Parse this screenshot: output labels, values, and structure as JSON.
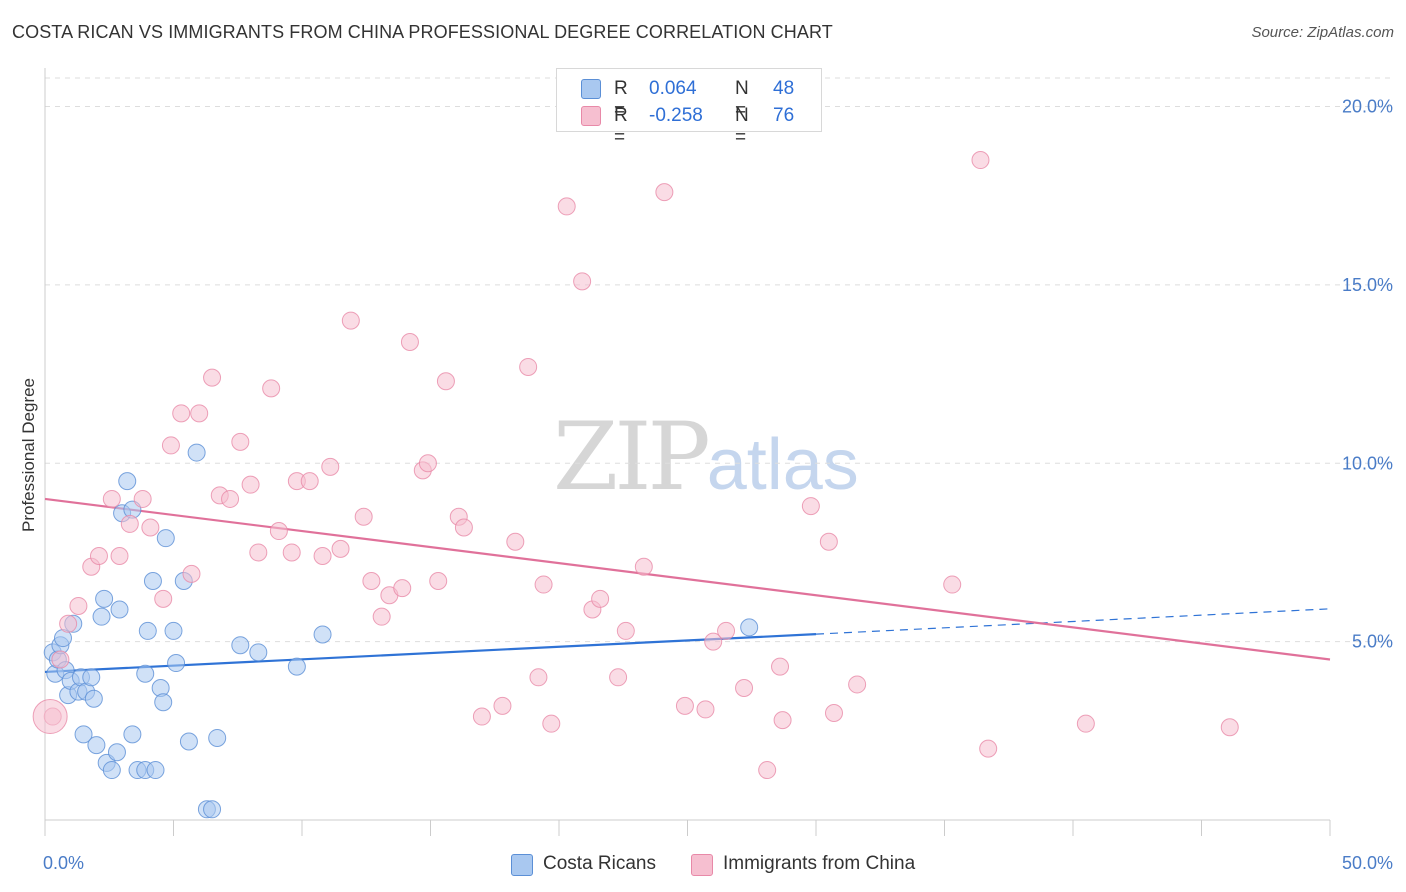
{
  "title": "COSTA RICAN VS IMMIGRANTS FROM CHINA PROFESSIONAL DEGREE CORRELATION CHART",
  "source": "Source: ZipAtlas.com",
  "watermark": {
    "zip": "ZIP",
    "atlas": "atlas"
  },
  "legend": {
    "rows": [
      {
        "r_label": "R =",
        "r_value": "0.064",
        "n_label": "N =",
        "n_value": "48",
        "color": "#a9c8f0",
        "stroke": "#5b8fd6"
      },
      {
        "r_label": "R =",
        "r_value": "-0.258",
        "n_label": "N =",
        "n_value": "76",
        "color": "#f6bfd0",
        "stroke": "#e889a8"
      }
    ]
  },
  "bottom_legend": [
    {
      "label": "Costa Ricans",
      "color": "#a9c8f0"
    },
    {
      "label": "Immigrants from China",
      "color": "#f6bfd0"
    }
  ],
  "chart_data": {
    "type": "scatter",
    "title": "COSTA RICAN VS IMMIGRANTS FROM CHINA PROFESSIONAL DEGREE CORRELATION CHART",
    "xlabel": "",
    "ylabel": "Professional Degree",
    "xlim": [
      0,
      50
    ],
    "ylim": [
      0,
      20.8
    ],
    "x_tick_labels": [
      "0.0%",
      "50.0%"
    ],
    "y_ticks": [
      5,
      10,
      15,
      20
    ],
    "y_tick_labels": [
      "5.0%",
      "10.0%",
      "15.0%",
      "20.0%"
    ],
    "grid": true,
    "legend_position": "top-center",
    "series": [
      {
        "name": "Costa Ricans",
        "color": "#5b8fd6",
        "fill": "#a9c8f0",
        "points": [
          [
            0.3,
            4.7
          ],
          [
            0.4,
            4.1
          ],
          [
            0.5,
            4.5
          ],
          [
            0.6,
            4.9
          ],
          [
            0.7,
            5.1
          ],
          [
            0.8,
            4.2
          ],
          [
            0.9,
            3.5
          ],
          [
            1.0,
            3.9
          ],
          [
            1.1,
            5.5
          ],
          [
            1.3,
            3.6
          ],
          [
            1.4,
            4.0
          ],
          [
            1.5,
            2.4
          ],
          [
            1.6,
            3.6
          ],
          [
            1.8,
            4.0
          ],
          [
            1.9,
            3.4
          ],
          [
            2.0,
            2.1
          ],
          [
            2.2,
            5.7
          ],
          [
            2.3,
            6.2
          ],
          [
            2.4,
            1.6
          ],
          [
            2.6,
            1.4
          ],
          [
            2.8,
            1.9
          ],
          [
            2.9,
            5.9
          ],
          [
            3.0,
            8.6
          ],
          [
            3.2,
            9.5
          ],
          [
            3.4,
            8.7
          ],
          [
            3.4,
            2.4
          ],
          [
            3.6,
            1.4
          ],
          [
            3.9,
            1.4
          ],
          [
            3.9,
            4.1
          ],
          [
            4.0,
            5.3
          ],
          [
            4.2,
            6.7
          ],
          [
            4.3,
            1.4
          ],
          [
            4.5,
            3.7
          ],
          [
            4.6,
            3.3
          ],
          [
            4.7,
            7.9
          ],
          [
            5.0,
            5.3
          ],
          [
            5.1,
            4.4
          ],
          [
            5.4,
            6.7
          ],
          [
            5.6,
            2.2
          ],
          [
            5.9,
            10.3
          ],
          [
            6.3,
            0.3
          ],
          [
            6.5,
            0.3
          ],
          [
            6.7,
            2.3
          ],
          [
            7.6,
            4.9
          ],
          [
            8.3,
            4.7
          ],
          [
            9.8,
            4.3
          ],
          [
            10.8,
            5.2
          ],
          [
            27.4,
            5.4
          ]
        ],
        "trend": {
          "x": [
            0,
            30
          ],
          "y": [
            4.15,
            5.21
          ],
          "dashed_x": [
            30,
            50
          ],
          "dashed_y": [
            5.21,
            5.92
          ]
        }
      },
      {
        "name": "Immigrants from China",
        "color": "#e889a8",
        "fill": "#f6bfd0",
        "points": [
          [
            0.3,
            2.9
          ],
          [
            0.6,
            4.5
          ],
          [
            0.9,
            5.5
          ],
          [
            1.3,
            6.0
          ],
          [
            1.8,
            7.1
          ],
          [
            2.1,
            7.4
          ],
          [
            2.6,
            9.0
          ],
          [
            2.9,
            7.4
          ],
          [
            3.3,
            8.3
          ],
          [
            3.8,
            9.0
          ],
          [
            4.1,
            8.2
          ],
          [
            4.6,
            6.2
          ],
          [
            4.9,
            10.5
          ],
          [
            5.3,
            11.4
          ],
          [
            5.7,
            6.9
          ],
          [
            6.0,
            11.4
          ],
          [
            6.5,
            12.4
          ],
          [
            6.8,
            9.1
          ],
          [
            7.2,
            9.0
          ],
          [
            7.6,
            10.6
          ],
          [
            8.0,
            9.4
          ],
          [
            8.3,
            7.5
          ],
          [
            8.8,
            12.1
          ],
          [
            9.1,
            8.1
          ],
          [
            9.6,
            7.5
          ],
          [
            9.8,
            9.5
          ],
          [
            10.3,
            9.5
          ],
          [
            10.8,
            7.4
          ],
          [
            11.1,
            9.9
          ],
          [
            11.5,
            7.6
          ],
          [
            11.9,
            14.0
          ],
          [
            12.4,
            8.5
          ],
          [
            12.7,
            6.7
          ],
          [
            13.1,
            5.7
          ],
          [
            13.4,
            6.3
          ],
          [
            13.9,
            6.5
          ],
          [
            14.2,
            13.4
          ],
          [
            14.7,
            9.8
          ],
          [
            14.9,
            10.0
          ],
          [
            15.3,
            6.7
          ],
          [
            15.6,
            12.3
          ],
          [
            16.1,
            8.5
          ],
          [
            16.3,
            8.2
          ],
          [
            17.0,
            2.9
          ],
          [
            17.8,
            3.2
          ],
          [
            18.3,
            7.8
          ],
          [
            18.8,
            12.7
          ],
          [
            19.2,
            4.0
          ],
          [
            19.4,
            6.6
          ],
          [
            19.7,
            2.7
          ],
          [
            20.3,
            17.2
          ],
          [
            20.9,
            15.1
          ],
          [
            21.3,
            5.9
          ],
          [
            21.6,
            6.2
          ],
          [
            22.3,
            4.0
          ],
          [
            22.6,
            5.3
          ],
          [
            23.3,
            7.1
          ],
          [
            24.1,
            17.6
          ],
          [
            24.9,
            3.2
          ],
          [
            25.7,
            3.1
          ],
          [
            26.0,
            5.0
          ],
          [
            26.5,
            5.3
          ],
          [
            27.2,
            3.7
          ],
          [
            28.1,
            1.4
          ],
          [
            28.6,
            4.3
          ],
          [
            28.7,
            2.8
          ],
          [
            29.8,
            8.8
          ],
          [
            30.5,
            7.8
          ],
          [
            30.7,
            3.0
          ],
          [
            31.6,
            3.8
          ],
          [
            35.3,
            6.6
          ],
          [
            36.4,
            18.5
          ],
          [
            36.7,
            2.0
          ],
          [
            40.5,
            2.7
          ],
          [
            46.1,
            2.6
          ],
          [
            0.2,
            2.9
          ]
        ],
        "trend": {
          "x": [
            0,
            50
          ],
          "y": [
            9.0,
            4.5
          ]
        }
      }
    ]
  }
}
